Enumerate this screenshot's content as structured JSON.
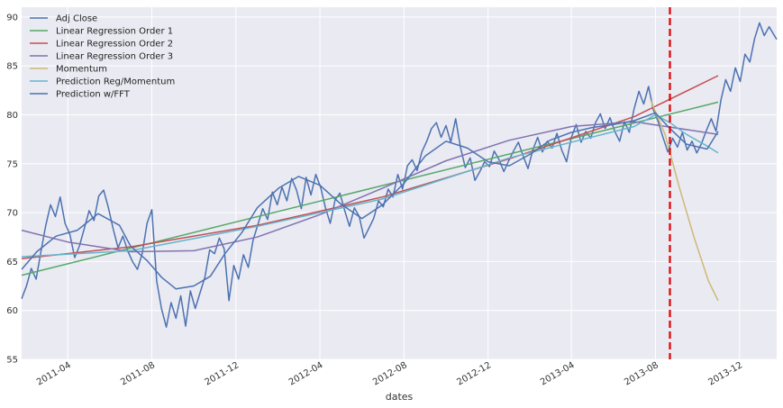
{
  "chart_data": {
    "type": "line",
    "title": "",
    "xlabel": "dates",
    "ylabel": "",
    "xlim": [
      "2011-01-24",
      "2014-01-24"
    ],
    "ylim": [
      55,
      91
    ],
    "yticks": [
      55,
      60,
      65,
      70,
      75,
      80,
      85,
      90
    ],
    "xticks": [
      {
        "date": "2011-04-01",
        "label": "2011-04"
      },
      {
        "date": "2011-08-01",
        "label": "2011-08"
      },
      {
        "date": "2011-12-01",
        "label": "2011-12"
      },
      {
        "date": "2012-04-01",
        "label": "2012-04"
      },
      {
        "date": "2012-08-01",
        "label": "2012-08"
      },
      {
        "date": "2012-12-01",
        "label": "2012-12"
      },
      {
        "date": "2013-04-01",
        "label": "2013-04"
      },
      {
        "date": "2013-08-01",
        "label": "2013-08"
      },
      {
        "date": "2013-12-01",
        "label": "2013-12"
      }
    ],
    "grid": true,
    "legend_position": "top-left",
    "vline": {
      "date": "2013-08-22",
      "color": "#e00000",
      "style": "dashed"
    },
    "series": [
      {
        "name": "Adj Close",
        "color": "#4c72b0",
        "points": [
          [
            "2011-01-24",
            61.2
          ],
          [
            "2011-01-31",
            62.5
          ],
          [
            "2011-02-07",
            64.3
          ],
          [
            "2011-02-14",
            63.2
          ],
          [
            "2011-02-21",
            66.0
          ],
          [
            "2011-02-28",
            68.7
          ],
          [
            "2011-03-07",
            70.8
          ],
          [
            "2011-03-14",
            69.6
          ],
          [
            "2011-03-21",
            71.6
          ],
          [
            "2011-03-28",
            68.9
          ],
          [
            "2011-04-04",
            67.8
          ],
          [
            "2011-04-11",
            65.4
          ],
          [
            "2011-04-18",
            66.6
          ],
          [
            "2011-04-25",
            68.4
          ],
          [
            "2011-05-02",
            70.2
          ],
          [
            "2011-05-09",
            69.2
          ],
          [
            "2011-05-16",
            71.7
          ],
          [
            "2011-05-23",
            72.3
          ],
          [
            "2011-05-30",
            70.5
          ],
          [
            "2011-06-06",
            68.3
          ],
          [
            "2011-06-13",
            66.4
          ],
          [
            "2011-06-20",
            67.6
          ],
          [
            "2011-06-27",
            66.1
          ],
          [
            "2011-07-04",
            65.0
          ],
          [
            "2011-07-11",
            64.2
          ],
          [
            "2011-07-18",
            65.8
          ],
          [
            "2011-07-25",
            68.9
          ],
          [
            "2011-08-01",
            70.3
          ],
          [
            "2011-08-08",
            63.0
          ],
          [
            "2011-08-15",
            60.2
          ],
          [
            "2011-08-22",
            58.3
          ],
          [
            "2011-08-29",
            60.8
          ],
          [
            "2011-09-05",
            59.2
          ],
          [
            "2011-09-12",
            61.5
          ],
          [
            "2011-09-19",
            58.4
          ],
          [
            "2011-09-26",
            62.0
          ],
          [
            "2011-10-03",
            60.2
          ],
          [
            "2011-10-10",
            61.8
          ],
          [
            "2011-10-17",
            63.4
          ],
          [
            "2011-10-24",
            66.2
          ],
          [
            "2011-10-31",
            65.8
          ],
          [
            "2011-11-07",
            67.4
          ],
          [
            "2011-11-14",
            66.3
          ],
          [
            "2011-11-21",
            61.0
          ],
          [
            "2011-11-28",
            64.6
          ],
          [
            "2011-12-05",
            63.2
          ],
          [
            "2011-12-12",
            65.7
          ],
          [
            "2011-12-19",
            64.4
          ],
          [
            "2011-12-26",
            67.2
          ],
          [
            "2012-01-02",
            68.8
          ],
          [
            "2012-01-09",
            70.4
          ],
          [
            "2012-01-16",
            69.3
          ],
          [
            "2012-01-23",
            72.1
          ],
          [
            "2012-01-30",
            70.8
          ],
          [
            "2012-02-06",
            72.6
          ],
          [
            "2012-02-13",
            71.2
          ],
          [
            "2012-02-20",
            73.5
          ],
          [
            "2012-02-27",
            72.3
          ],
          [
            "2012-03-05",
            70.4
          ],
          [
            "2012-03-12",
            73.6
          ],
          [
            "2012-03-19",
            71.8
          ],
          [
            "2012-03-26",
            73.9
          ],
          [
            "2012-04-02",
            72.6
          ],
          [
            "2012-04-09",
            70.5
          ],
          [
            "2012-04-16",
            68.9
          ],
          [
            "2012-04-23",
            71.3
          ],
          [
            "2012-04-30",
            72.0
          ],
          [
            "2012-05-07",
            70.2
          ],
          [
            "2012-05-14",
            68.6
          ],
          [
            "2012-05-21",
            70.5
          ],
          [
            "2012-05-28",
            69.6
          ],
          [
            "2012-06-04",
            67.4
          ],
          [
            "2012-06-11",
            68.4
          ],
          [
            "2012-06-18",
            69.4
          ],
          [
            "2012-06-25",
            71.2
          ],
          [
            "2012-07-02",
            70.6
          ],
          [
            "2012-07-09",
            72.4
          ],
          [
            "2012-07-16",
            71.6
          ],
          [
            "2012-07-23",
            73.9
          ],
          [
            "2012-07-30",
            72.4
          ],
          [
            "2012-08-06",
            74.8
          ],
          [
            "2012-08-13",
            75.4
          ],
          [
            "2012-08-20",
            74.3
          ],
          [
            "2012-08-27",
            76.2
          ],
          [
            "2012-09-03",
            77.3
          ],
          [
            "2012-09-10",
            78.6
          ],
          [
            "2012-09-17",
            79.2
          ],
          [
            "2012-09-24",
            77.7
          ],
          [
            "2012-10-01",
            78.9
          ],
          [
            "2012-10-08",
            77.2
          ],
          [
            "2012-10-15",
            79.6
          ],
          [
            "2012-10-22",
            76.7
          ],
          [
            "2012-10-29",
            74.6
          ],
          [
            "2012-11-05",
            75.6
          ],
          [
            "2012-11-12",
            73.3
          ],
          [
            "2012-11-19",
            74.2
          ],
          [
            "2012-11-26",
            75.2
          ],
          [
            "2012-12-03",
            74.7
          ],
          [
            "2012-12-10",
            76.3
          ],
          [
            "2012-12-17",
            75.4
          ],
          [
            "2012-12-24",
            74.2
          ],
          [
            "2012-12-31",
            75.3
          ],
          [
            "2013-01-07",
            76.3
          ],
          [
            "2013-01-14",
            77.2
          ],
          [
            "2013-01-21",
            75.8
          ],
          [
            "2013-01-28",
            74.5
          ],
          [
            "2013-02-04",
            76.4
          ],
          [
            "2013-02-11",
            77.7
          ],
          [
            "2013-02-18",
            76.2
          ],
          [
            "2013-02-25",
            77.3
          ],
          [
            "2013-03-04",
            76.6
          ],
          [
            "2013-03-11",
            78.1
          ],
          [
            "2013-03-18",
            76.4
          ],
          [
            "2013-03-25",
            75.2
          ],
          [
            "2013-04-01",
            77.7
          ],
          [
            "2013-04-08",
            79.0
          ],
          [
            "2013-04-15",
            77.2
          ],
          [
            "2013-04-22",
            78.3
          ],
          [
            "2013-04-29",
            77.6
          ],
          [
            "2013-05-06",
            79.2
          ],
          [
            "2013-05-13",
            80.1
          ],
          [
            "2013-05-20",
            78.6
          ],
          [
            "2013-05-27",
            79.7
          ],
          [
            "2013-06-03",
            78.3
          ],
          [
            "2013-06-10",
            77.3
          ],
          [
            "2013-06-17",
            79.3
          ],
          [
            "2013-06-24",
            78.2
          ],
          [
            "2013-07-01",
            80.6
          ],
          [
            "2013-07-08",
            82.4
          ],
          [
            "2013-07-15",
            81.1
          ],
          [
            "2013-07-22",
            82.9
          ],
          [
            "2013-07-29",
            80.5
          ],
          [
            "2013-08-05",
            79.3
          ],
          [
            "2013-08-12",
            77.7
          ],
          [
            "2013-08-19",
            76.2
          ],
          [
            "2013-08-26",
            77.6
          ],
          [
            "2013-09-02",
            76.7
          ],
          [
            "2013-09-09",
            78.2
          ],
          [
            "2013-09-16",
            76.4
          ],
          [
            "2013-09-23",
            77.3
          ],
          [
            "2013-09-30",
            76.1
          ],
          [
            "2013-10-07",
            77.1
          ],
          [
            "2013-10-14",
            78.4
          ],
          [
            "2013-10-21",
            79.6
          ],
          [
            "2013-10-28",
            78.3
          ],
          [
            "2013-11-04",
            81.5
          ],
          [
            "2013-11-11",
            83.6
          ],
          [
            "2013-11-18",
            82.4
          ],
          [
            "2013-11-25",
            84.8
          ],
          [
            "2013-12-02",
            83.4
          ],
          [
            "2013-12-09",
            86.2
          ],
          [
            "2013-12-16",
            85.4
          ],
          [
            "2013-12-23",
            87.8
          ],
          [
            "2013-12-30",
            89.4
          ],
          [
            "2014-01-06",
            88.1
          ],
          [
            "2014-01-13",
            89.0
          ],
          [
            "2014-01-24",
            87.7
          ]
        ]
      },
      {
        "name": "Linear Regression Order 1",
        "color": "#55a868",
        "points": [
          [
            "2011-01-24",
            63.6
          ],
          [
            "2013-10-31",
            81.3
          ]
        ]
      },
      {
        "name": "Linear Regression Order 2",
        "color": "#c44e52",
        "points": [
          [
            "2011-01-24",
            65.3
          ],
          [
            "2011-07-01",
            66.5
          ],
          [
            "2012-01-01",
            68.7
          ],
          [
            "2012-07-01",
            71.6
          ],
          [
            "2013-01-01",
            75.5
          ],
          [
            "2013-07-01",
            79.8
          ],
          [
            "2013-10-31",
            84.0
          ]
        ]
      },
      {
        "name": "Linear Regression Order 3",
        "color": "#8172b2",
        "points": [
          [
            "2011-01-24",
            68.2
          ],
          [
            "2011-04-01",
            67.0
          ],
          [
            "2011-07-01",
            66.0
          ],
          [
            "2011-10-01",
            66.1
          ],
          [
            "2012-01-01",
            67.5
          ],
          [
            "2012-04-01",
            69.8
          ],
          [
            "2012-07-01",
            72.5
          ],
          [
            "2012-10-01",
            75.3
          ],
          [
            "2013-01-01",
            77.4
          ],
          [
            "2013-04-01",
            78.8
          ],
          [
            "2013-07-01",
            79.3
          ],
          [
            "2013-10-31",
            78.0
          ]
        ]
      },
      {
        "name": "Momentum",
        "color": "#ccb974",
        "points": [
          [
            "2013-07-25",
            81.5
          ],
          [
            "2013-08-15",
            78.0
          ],
          [
            "2013-09-05",
            72.5
          ],
          [
            "2013-09-26",
            67.5
          ],
          [
            "2013-10-17",
            63.0
          ],
          [
            "2013-10-31",
            61.0
          ]
        ]
      },
      {
        "name": "Prediction Reg/Momentum",
        "color": "#64b5cd",
        "points": [
          [
            "2011-01-24",
            65.5
          ],
          [
            "2011-07-01",
            66.1
          ],
          [
            "2012-01-01",
            68.6
          ],
          [
            "2012-07-01",
            71.4
          ],
          [
            "2013-01-01",
            75.6
          ],
          [
            "2013-07-01",
            78.8
          ],
          [
            "2013-08-01",
            80.0
          ],
          [
            "2013-08-22",
            79.2
          ],
          [
            "2013-09-15",
            78.0
          ],
          [
            "2013-10-15",
            76.8
          ],
          [
            "2013-10-31",
            76.1
          ]
        ]
      },
      {
        "name": "Prediction w/FFT",
        "color": "#4c72b0",
        "points": [
          [
            "2011-01-24",
            64.2
          ],
          [
            "2011-02-15",
            66.0
          ],
          [
            "2011-03-15",
            67.6
          ],
          [
            "2011-04-15",
            68.2
          ],
          [
            "2011-05-15",
            69.9
          ],
          [
            "2011-06-15",
            68.7
          ],
          [
            "2011-07-01",
            66.6
          ],
          [
            "2011-07-25",
            65.1
          ],
          [
            "2011-08-15",
            63.4
          ],
          [
            "2011-09-05",
            62.2
          ],
          [
            "2011-10-01",
            62.5
          ],
          [
            "2011-10-25",
            63.5
          ],
          [
            "2011-11-15",
            65.8
          ],
          [
            "2011-12-10",
            68.0
          ],
          [
            "2012-01-01",
            70.5
          ],
          [
            "2012-02-01",
            72.5
          ],
          [
            "2012-03-01",
            73.7
          ],
          [
            "2012-04-01",
            72.8
          ],
          [
            "2012-05-01",
            70.9
          ],
          [
            "2012-06-01",
            69.4
          ],
          [
            "2012-07-01",
            70.8
          ],
          [
            "2012-08-01",
            73.0
          ],
          [
            "2012-09-01",
            75.8
          ],
          [
            "2012-10-01",
            77.3
          ],
          [
            "2012-11-01",
            76.6
          ],
          [
            "2012-12-01",
            75.2
          ],
          [
            "2013-01-01",
            74.8
          ],
          [
            "2013-02-01",
            76.0
          ],
          [
            "2013-03-01",
            77.4
          ],
          [
            "2013-04-01",
            78.2
          ],
          [
            "2013-05-01",
            78.7
          ],
          [
            "2013-06-01",
            79.0
          ],
          [
            "2013-07-01",
            79.4
          ],
          [
            "2013-08-01",
            80.2
          ],
          [
            "2013-08-22",
            78.6
          ],
          [
            "2013-09-15",
            77.0
          ],
          [
            "2013-10-15",
            76.5
          ],
          [
            "2013-10-31",
            78.3
          ]
        ]
      }
    ]
  }
}
